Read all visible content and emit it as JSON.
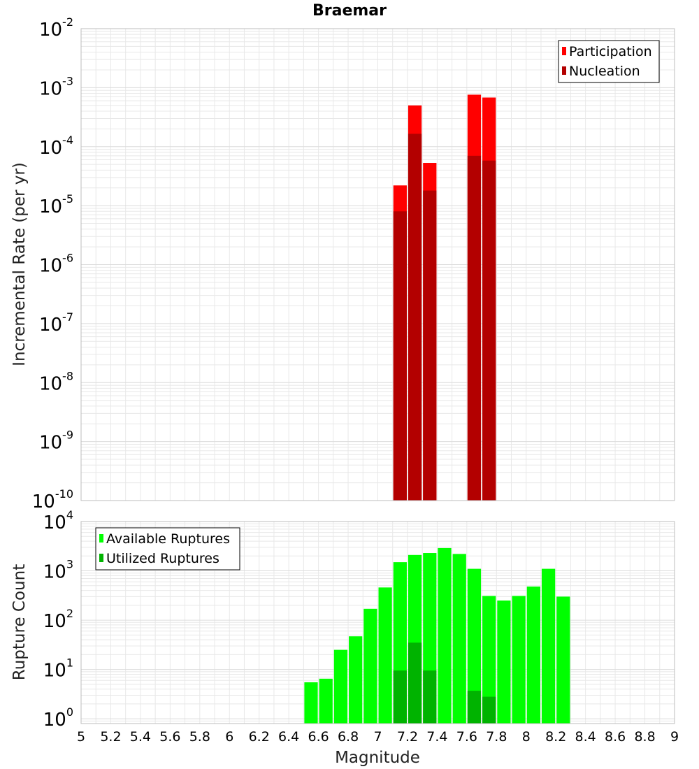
{
  "colors": {
    "participation": "#ff0000",
    "nucleation": "#b30000",
    "available": "#00ff00",
    "utilized": "#00b300",
    "grid": "#e8e8e8",
    "frame": "#bdbdbd"
  },
  "chart_data": [
    {
      "type": "bar",
      "title": "Braemar",
      "xlabel": "",
      "ylabel": "Incremental Rate (per yr)",
      "yscale": "log",
      "ylim": [
        1e-10,
        0.01
      ],
      "xlim": [
        5,
        9
      ],
      "bin_width": 0.1,
      "grid": true,
      "legend_position": "top-right",
      "y_tick_exponents": [
        "-10",
        "-9",
        "-8",
        "-7",
        "-6",
        "-5",
        "-4",
        "-3",
        "-2"
      ],
      "y_tick_values": [
        1e-10,
        1e-09,
        1e-08,
        1e-07,
        1e-06,
        1e-05,
        0.0001,
        0.001,
        0.01
      ],
      "x": [
        7.15,
        7.25,
        7.35,
        7.65,
        7.75
      ],
      "series": [
        {
          "name": "Participation",
          "values": [
            2.2e-05,
            0.0005,
            5.3e-05,
            0.00076,
            0.00068
          ]
        },
        {
          "name": "Nucleation",
          "values": [
            8e-06,
            0.000165,
            1.8e-05,
            7e-05,
            5.8e-05
          ]
        }
      ]
    },
    {
      "type": "bar",
      "title": "",
      "xlabel": "Magnitude",
      "ylabel": "Rupture Count",
      "yscale": "log",
      "ylim": [
        0.8,
        10000
      ],
      "xlim": [
        5,
        9
      ],
      "bin_width": 0.1,
      "grid": true,
      "legend_position": "top-left",
      "y_tick_exponents": [
        "0",
        "1",
        "2",
        "3",
        "4"
      ],
      "y_tick_values": [
        1,
        10,
        100,
        1000,
        10000
      ],
      "x_tick_labels": [
        "5",
        "5.2",
        "5.4",
        "5.6",
        "5.8",
        "6",
        "6.2",
        "6.4",
        "6.6",
        "6.8",
        "7",
        "7.2",
        "7.4",
        "7.6",
        "7.8",
        "8",
        "8.2",
        "8.4",
        "8.6",
        "8.8",
        "9"
      ],
      "x": [
        6.55,
        6.65,
        6.75,
        6.85,
        6.95,
        7.05,
        7.15,
        7.25,
        7.35,
        7.45,
        7.55,
        7.65,
        7.75,
        7.85,
        7.95,
        8.05,
        8.15,
        8.25
      ],
      "series": [
        {
          "name": "Available Ruptures",
          "values": [
            5.5,
            6.5,
            25,
            47,
            170,
            460,
            1500,
            2100,
            2300,
            2900,
            2200,
            1100,
            310,
            250,
            310,
            480,
            1100,
            300
          ]
        },
        {
          "name": "Utilized Ruptures",
          "values": [
            null,
            null,
            null,
            null,
            null,
            null,
            9.5,
            35,
            9.5,
            null,
            null,
            3.7,
            2.8,
            null,
            null,
            null,
            null,
            null
          ]
        }
      ]
    }
  ]
}
